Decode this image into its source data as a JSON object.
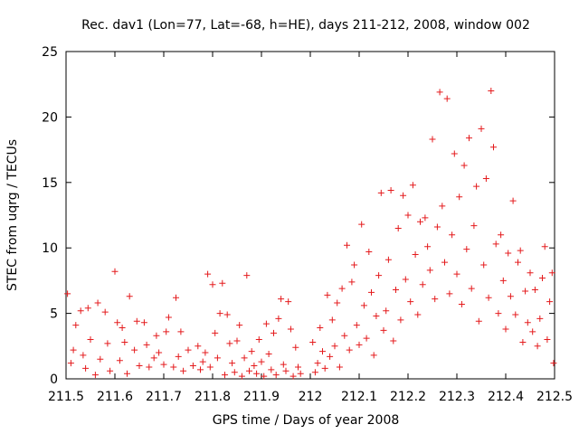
{
  "chart_data": {
    "type": "scatter",
    "title": "Rec. dav1 (Lon=77, Lat=-68, h=HE), days 211-212, 2008, window 002",
    "xlabel": "GPS time / Days of year 2008",
    "ylabel": "STEC from uqrg / TECUs",
    "xlim": [
      211.5,
      212.5
    ],
    "ylim": [
      0,
      25
    ],
    "x_ticks": [
      "211.5",
      "211.6",
      "211.7",
      "211.8",
      "211.9",
      "212",
      "212.1",
      "212.2",
      "212.3",
      "212.4",
      "212.5"
    ],
    "y_ticks": [
      "0",
      "5",
      "10",
      "15",
      "20",
      "25"
    ],
    "grid": false,
    "legend": "none",
    "marker": "plus",
    "color": "#e41a1c",
    "series": [
      {
        "points": [
          [
            211.503,
            6.5
          ],
          [
            211.51,
            1.2
          ],
          [
            211.515,
            2.2
          ],
          [
            211.52,
            4.1
          ],
          [
            211.53,
            5.2
          ],
          [
            211.535,
            1.8
          ],
          [
            211.54,
            0.8
          ],
          [
            211.545,
            5.4
          ],
          [
            211.55,
            3.0
          ],
          [
            211.56,
            0.3
          ],
          [
            211.565,
            5.8
          ],
          [
            211.57,
            1.5
          ],
          [
            211.58,
            5.1
          ],
          [
            211.585,
            2.7
          ],
          [
            211.59,
            0.6
          ],
          [
            211.6,
            8.2
          ],
          [
            211.605,
            4.3
          ],
          [
            211.61,
            1.4
          ],
          [
            211.615,
            3.9
          ],
          [
            211.62,
            2.8
          ],
          [
            211.625,
            0.4
          ],
          [
            211.63,
            6.3
          ],
          [
            211.64,
            2.2
          ],
          [
            211.645,
            4.4
          ],
          [
            211.65,
            1.0
          ],
          [
            211.66,
            4.3
          ],
          [
            211.665,
            2.6
          ],
          [
            211.67,
            0.9
          ],
          [
            211.68,
            1.6
          ],
          [
            211.685,
            3.3
          ],
          [
            211.69,
            2.0
          ],
          [
            211.7,
            1.1
          ],
          [
            211.705,
            3.6
          ],
          [
            211.71,
            4.7
          ],
          [
            211.72,
            0.9
          ],
          [
            211.725,
            6.2
          ],
          [
            211.73,
            1.7
          ],
          [
            211.735,
            3.6
          ],
          [
            211.74,
            0.6
          ],
          [
            211.75,
            2.2
          ],
          [
            211.76,
            1.0
          ],
          [
            211.77,
            2.5
          ],
          [
            211.775,
            0.7
          ],
          [
            211.78,
            1.3
          ],
          [
            211.785,
            2.0
          ],
          [
            211.79,
            8.0
          ],
          [
            211.795,
            0.9
          ],
          [
            211.8,
            7.2
          ],
          [
            211.805,
            3.5
          ],
          [
            211.81,
            1.6
          ],
          [
            211.815,
            5.0
          ],
          [
            211.82,
            7.3
          ],
          [
            211.825,
            0.3
          ],
          [
            211.83,
            4.9
          ],
          [
            211.835,
            2.7
          ],
          [
            211.84,
            1.2
          ],
          [
            211.845,
            0.5
          ],
          [
            211.85,
            2.9
          ],
          [
            211.855,
            4.1
          ],
          [
            211.86,
            0.2
          ],
          [
            211.865,
            1.6
          ],
          [
            211.87,
            7.9
          ],
          [
            211.875,
            0.6
          ],
          [
            211.88,
            2.1
          ],
          [
            211.885,
            1.0
          ],
          [
            211.89,
            0.4
          ],
          [
            211.895,
            3.0
          ],
          [
            211.9,
            1.3
          ],
          [
            211.905,
            0.2
          ],
          [
            211.91,
            4.2
          ],
          [
            211.915,
            1.9
          ],
          [
            211.92,
            0.7
          ],
          [
            211.925,
            3.5
          ],
          [
            211.93,
            0.3
          ],
          [
            211.935,
            4.6
          ],
          [
            211.94,
            6.1
          ],
          [
            211.945,
            1.1
          ],
          [
            211.95,
            0.6
          ],
          [
            211.955,
            5.9
          ],
          [
            211.96,
            3.8
          ],
          [
            211.965,
            0.2
          ],
          [
            211.97,
            2.4
          ],
          [
            211.975,
            0.9
          ],
          [
            211.98,
            0.4
          ],
          [
            212.005,
            2.8
          ],
          [
            212.01,
            0.5
          ],
          [
            212.015,
            1.2
          ],
          [
            212.02,
            3.9
          ],
          [
            212.025,
            2.1
          ],
          [
            212.03,
            0.8
          ],
          [
            212.035,
            6.4
          ],
          [
            212.04,
            1.7
          ],
          [
            212.045,
            4.5
          ],
          [
            212.05,
            2.5
          ],
          [
            212.055,
            5.8
          ],
          [
            212.06,
            0.9
          ],
          [
            212.065,
            6.9
          ],
          [
            212.07,
            3.3
          ],
          [
            212.075,
            10.2
          ],
          [
            212.08,
            2.2
          ],
          [
            212.085,
            7.4
          ],
          [
            212.09,
            8.7
          ],
          [
            212.095,
            4.1
          ],
          [
            212.1,
            2.6
          ],
          [
            212.105,
            11.8
          ],
          [
            212.11,
            5.6
          ],
          [
            212.115,
            3.1
          ],
          [
            212.12,
            9.7
          ],
          [
            212.125,
            6.6
          ],
          [
            212.13,
            1.8
          ],
          [
            212.135,
            4.8
          ],
          [
            212.14,
            7.9
          ],
          [
            212.145,
            14.2
          ],
          [
            212.15,
            3.7
          ],
          [
            212.155,
            5.2
          ],
          [
            212.16,
            9.1
          ],
          [
            212.165,
            14.4
          ],
          [
            212.17,
            2.9
          ],
          [
            212.175,
            6.8
          ],
          [
            212.18,
            11.5
          ],
          [
            212.185,
            4.5
          ],
          [
            212.19,
            14.0
          ],
          [
            212.195,
            7.6
          ],
          [
            212.2,
            12.5
          ],
          [
            212.205,
            5.9
          ],
          [
            212.21,
            14.8
          ],
          [
            212.215,
            9.5
          ],
          [
            212.22,
            4.9
          ],
          [
            212.225,
            12.0
          ],
          [
            212.23,
            7.2
          ],
          [
            212.235,
            12.3
          ],
          [
            212.24,
            10.1
          ],
          [
            212.245,
            8.3
          ],
          [
            212.25,
            18.3
          ],
          [
            212.255,
            6.1
          ],
          [
            212.26,
            11.6
          ],
          [
            212.265,
            21.9
          ],
          [
            212.27,
            13.2
          ],
          [
            212.275,
            8.9
          ],
          [
            212.28,
            21.4
          ],
          [
            212.285,
            6.5
          ],
          [
            212.29,
            11.0
          ],
          [
            212.295,
            17.2
          ],
          [
            212.3,
            8.0
          ],
          [
            212.305,
            13.9
          ],
          [
            212.31,
            5.7
          ],
          [
            212.315,
            16.3
          ],
          [
            212.32,
            9.9
          ],
          [
            212.325,
            18.4
          ],
          [
            212.33,
            6.9
          ],
          [
            212.335,
            11.7
          ],
          [
            212.34,
            14.7
          ],
          [
            212.345,
            4.4
          ],
          [
            212.35,
            19.1
          ],
          [
            212.355,
            8.7
          ],
          [
            212.36,
            15.3
          ],
          [
            212.365,
            6.2
          ],
          [
            212.37,
            22.0
          ],
          [
            212.375,
            17.7
          ],
          [
            212.38,
            10.3
          ],
          [
            212.385,
            5.0
          ],
          [
            212.39,
            11.0
          ],
          [
            212.395,
            7.5
          ],
          [
            212.4,
            3.8
          ],
          [
            212.405,
            9.6
          ],
          [
            212.41,
            6.3
          ],
          [
            212.415,
            13.6
          ],
          [
            212.42,
            4.9
          ],
          [
            212.425,
            8.9
          ],
          [
            212.43,
            9.8
          ],
          [
            212.435,
            2.8
          ],
          [
            212.44,
            6.7
          ],
          [
            212.445,
            4.3
          ],
          [
            212.45,
            8.1
          ],
          [
            212.455,
            3.6
          ],
          [
            212.46,
            6.8
          ],
          [
            212.465,
            2.5
          ],
          [
            212.47,
            4.6
          ],
          [
            212.475,
            7.7
          ],
          [
            212.48,
            10.1
          ],
          [
            212.485,
            3.0
          ],
          [
            212.49,
            5.9
          ],
          [
            212.495,
            8.1
          ],
          [
            212.498,
            1.2
          ]
        ]
      }
    ]
  }
}
